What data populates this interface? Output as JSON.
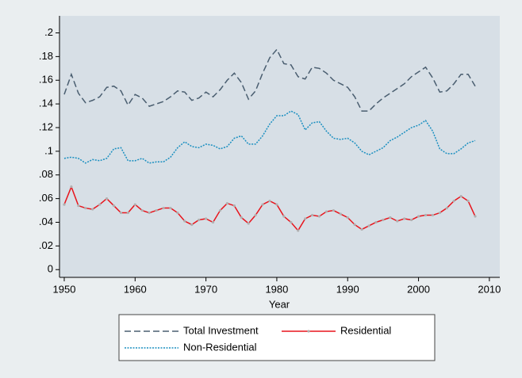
{
  "chart_data": {
    "type": "line",
    "x_label": "Year",
    "x": [
      1950,
      1951,
      1952,
      1953,
      1954,
      1955,
      1956,
      1957,
      1958,
      1959,
      1960,
      1961,
      1962,
      1963,
      1964,
      1965,
      1966,
      1967,
      1968,
      1969,
      1970,
      1971,
      1972,
      1973,
      1974,
      1975,
      1976,
      1977,
      1978,
      1979,
      1980,
      1981,
      1982,
      1983,
      1984,
      1985,
      1986,
      1987,
      1988,
      1989,
      1990,
      1991,
      1992,
      1993,
      1994,
      1995,
      1996,
      1997,
      1998,
      1999,
      2000,
      2001,
      2002,
      2003,
      2004,
      2005,
      2006,
      2007,
      2008
    ],
    "series": [
      {
        "name": "Total Investment",
        "color": "#4a5e70",
        "line_style": "dashed",
        "marker": false,
        "values": [
          0.148,
          0.165,
          0.149,
          0.141,
          0.143,
          0.146,
          0.154,
          0.155,
          0.151,
          0.139,
          0.148,
          0.145,
          0.138,
          0.14,
          0.142,
          0.146,
          0.151,
          0.15,
          0.143,
          0.145,
          0.15,
          0.146,
          0.152,
          0.16,
          0.166,
          0.158,
          0.144,
          0.151,
          0.166,
          0.179,
          0.186,
          0.174,
          0.173,
          0.163,
          0.161,
          0.171,
          0.17,
          0.166,
          0.16,
          0.157,
          0.154,
          0.146,
          0.134,
          0.134,
          0.14,
          0.145,
          0.149,
          0.153,
          0.157,
          0.163,
          0.167,
          0.171,
          0.162,
          0.15,
          0.151,
          0.157,
          0.165,
          0.165,
          0.155
        ]
      },
      {
        "name": "Residential",
        "color": "#e8141c",
        "line_style": "solid",
        "marker": true,
        "values": [
          0.055,
          0.07,
          0.054,
          0.052,
          0.051,
          0.055,
          0.06,
          0.054,
          0.048,
          0.048,
          0.055,
          0.05,
          0.048,
          0.05,
          0.052,
          0.052,
          0.048,
          0.041,
          0.038,
          0.042,
          0.043,
          0.04,
          0.05,
          0.056,
          0.054,
          0.044,
          0.039,
          0.046,
          0.055,
          0.058,
          0.055,
          0.045,
          0.04,
          0.033,
          0.043,
          0.046,
          0.045,
          0.049,
          0.05,
          0.047,
          0.044,
          0.038,
          0.034,
          0.037,
          0.04,
          0.042,
          0.044,
          0.041,
          0.043,
          0.042,
          0.045,
          0.046,
          0.046,
          0.048,
          0.052,
          0.058,
          0.062,
          0.058,
          0.045
        ]
      },
      {
        "name": "Non-Residential",
        "color": "#1a8fc0",
        "line_style": "dotted",
        "marker": false,
        "values": [
          0.094,
          0.095,
          0.094,
          0.09,
          0.093,
          0.092,
          0.094,
          0.102,
          0.103,
          0.092,
          0.092,
          0.094,
          0.09,
          0.091,
          0.091,
          0.095,
          0.103,
          0.108,
          0.104,
          0.103,
          0.106,
          0.105,
          0.102,
          0.104,
          0.111,
          0.113,
          0.106,
          0.106,
          0.113,
          0.123,
          0.13,
          0.13,
          0.134,
          0.131,
          0.118,
          0.124,
          0.125,
          0.117,
          0.111,
          0.11,
          0.111,
          0.107,
          0.1,
          0.097,
          0.1,
          0.103,
          0.109,
          0.112,
          0.116,
          0.12,
          0.122,
          0.126,
          0.117,
          0.102,
          0.098,
          0.098,
          0.102,
          0.107,
          0.109
        ]
      }
    ],
    "xlim": [
      1949.33,
      2011.47
    ],
    "xticks": [
      1950,
      1960,
      1970,
      1980,
      1990,
      2000,
      2010
    ],
    "ylim": [
      -0.00654,
      0.2144
    ],
    "yticks": [
      0,
      {
        "value": 0.02,
        "label": ".02"
      },
      {
        "value": 0.04,
        "label": ".04"
      },
      {
        "value": 0.06,
        "label": ".06"
      },
      {
        "value": 0.08,
        "label": ".08"
      },
      {
        "value": 0.1,
        "label": ".1"
      },
      {
        "value": 0.12,
        "label": ".12"
      },
      {
        "value": 0.14,
        "label": ".14"
      },
      {
        "value": 0.16,
        "label": ".16"
      },
      {
        "value": 0.18,
        "label": ".18"
      },
      {
        "value": 0.2,
        "label": ".2"
      }
    ],
    "grid": false,
    "legend": "bottom"
  }
}
